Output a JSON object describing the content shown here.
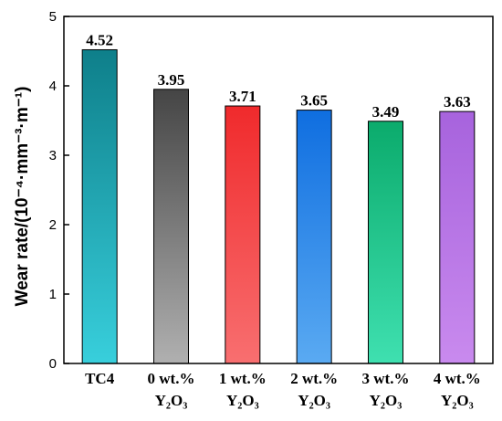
{
  "chart_data": {
    "type": "bar",
    "categories": [
      {
        "line1": "TC4",
        "line2": ""
      },
      {
        "line1": "0 wt.%",
        "line2": "Y₂O₃"
      },
      {
        "line1": "1 wt.%",
        "line2": "Y₂O₃"
      },
      {
        "line1": "2 wt.%",
        "line2": "Y₂O₃"
      },
      {
        "line1": "3 wt.%",
        "line2": "Y₂O₃"
      },
      {
        "line1": "4 wt.%",
        "line2": "Y₂O₃"
      }
    ],
    "values": [
      4.52,
      3.95,
      3.71,
      3.65,
      3.49,
      3.63
    ],
    "data_labels": [
      "4.52",
      "3.95",
      "3.71",
      "3.65",
      "3.49",
      "3.63"
    ],
    "ylabel": "Wear rate/(10⁻⁴·mm⁻³·m⁻¹)",
    "xlabel": "",
    "ylim": [
      0,
      5
    ],
    "yticks": [
      "0",
      "1",
      "2",
      "3",
      "4",
      "5"
    ],
    "grid": false,
    "bar_gradients": [
      {
        "top": "#0e7f8a",
        "bottom": "#38cfdc"
      },
      {
        "top": "#454545",
        "bottom": "#b0b0b0"
      },
      {
        "top": "#f02a2c",
        "bottom": "#f86f70"
      },
      {
        "top": "#0f6ee0",
        "bottom": "#5aaaf2"
      },
      {
        "top": "#0bab6c",
        "bottom": "#3fe0b0"
      },
      {
        "top": "#a763dd",
        "bottom": "#c98aee"
      }
    ]
  }
}
